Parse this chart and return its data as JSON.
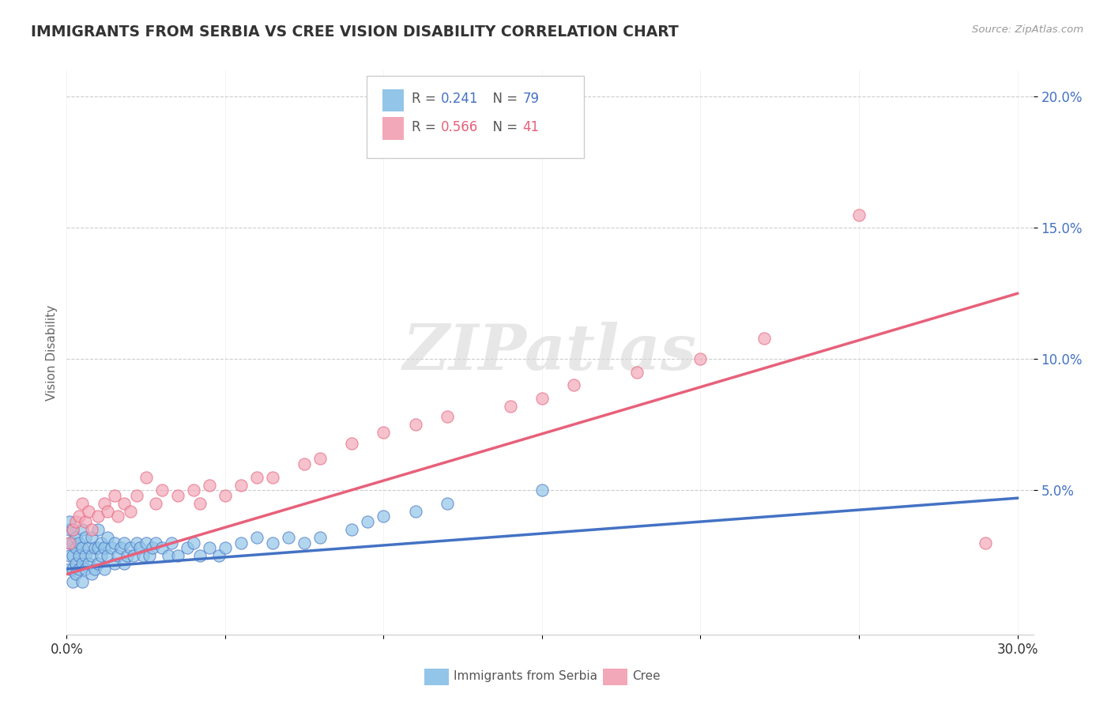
{
  "title": "IMMIGRANTS FROM SERBIA VS CREE VISION DISABILITY CORRELATION CHART",
  "source": "Source: ZipAtlas.com",
  "ylabel": "Vision Disability",
  "xlim": [
    0.0,
    0.305
  ],
  "ylim": [
    -0.005,
    0.21
  ],
  "xticks": [
    0.0,
    0.05,
    0.1,
    0.15,
    0.2,
    0.25,
    0.3
  ],
  "xticklabels": [
    "0.0%",
    "",
    "",
    "",
    "",
    "",
    "30.0%"
  ],
  "ytick_positions": [
    0.05,
    0.1,
    0.15,
    0.2
  ],
  "yticklabels": [
    "5.0%",
    "10.0%",
    "15.0%",
    "20.0%"
  ],
  "watermark": "ZIPatlas",
  "legend_r1": "0.241",
  "legend_n1": "79",
  "legend_r2": "0.566",
  "legend_n2": "41",
  "color_blue": "#92c5e8",
  "color_pink": "#f2a8b8",
  "color_blue_line": "#4472c4",
  "color_pink_line": "#e8607a",
  "serbia_x": [
    0.001,
    0.001,
    0.001,
    0.001,
    0.001,
    0.002,
    0.002,
    0.002,
    0.002,
    0.002,
    0.003,
    0.003,
    0.003,
    0.003,
    0.004,
    0.004,
    0.004,
    0.005,
    0.005,
    0.005,
    0.005,
    0.006,
    0.006,
    0.006,
    0.007,
    0.007,
    0.008,
    0.008,
    0.008,
    0.009,
    0.009,
    0.01,
    0.01,
    0.01,
    0.011,
    0.011,
    0.012,
    0.012,
    0.013,
    0.013,
    0.014,
    0.015,
    0.015,
    0.016,
    0.017,
    0.018,
    0.018,
    0.019,
    0.02,
    0.021,
    0.022,
    0.023,
    0.024,
    0.025,
    0.026,
    0.027,
    0.028,
    0.03,
    0.032,
    0.033,
    0.035,
    0.038,
    0.04,
    0.042,
    0.045,
    0.048,
    0.05,
    0.055,
    0.06,
    0.065,
    0.07,
    0.075,
    0.08,
    0.09,
    0.095,
    0.1,
    0.11,
    0.12,
    0.15
  ],
  "serbia_y": [
    0.02,
    0.025,
    0.03,
    0.035,
    0.038,
    0.015,
    0.02,
    0.025,
    0.03,
    0.035,
    0.018,
    0.022,
    0.028,
    0.032,
    0.02,
    0.025,
    0.03,
    0.015,
    0.022,
    0.028,
    0.035,
    0.02,
    0.025,
    0.032,
    0.022,
    0.028,
    0.018,
    0.025,
    0.032,
    0.02,
    0.028,
    0.022,
    0.028,
    0.035,
    0.025,
    0.03,
    0.02,
    0.028,
    0.025,
    0.032,
    0.028,
    0.022,
    0.03,
    0.025,
    0.028,
    0.022,
    0.03,
    0.025,
    0.028,
    0.025,
    0.03,
    0.028,
    0.025,
    0.03,
    0.025,
    0.028,
    0.03,
    0.028,
    0.025,
    0.03,
    0.025,
    0.028,
    0.03,
    0.025,
    0.028,
    0.025,
    0.028,
    0.03,
    0.032,
    0.03,
    0.032,
    0.03,
    0.032,
    0.035,
    0.038,
    0.04,
    0.042,
    0.045,
    0.05
  ],
  "cree_x": [
    0.001,
    0.002,
    0.003,
    0.004,
    0.005,
    0.006,
    0.007,
    0.008,
    0.01,
    0.012,
    0.013,
    0.015,
    0.016,
    0.018,
    0.02,
    0.022,
    0.025,
    0.028,
    0.03,
    0.035,
    0.04,
    0.042,
    0.045,
    0.05,
    0.055,
    0.06,
    0.065,
    0.075,
    0.08,
    0.09,
    0.1,
    0.11,
    0.12,
    0.14,
    0.15,
    0.16,
    0.18,
    0.2,
    0.22,
    0.25,
    0.29
  ],
  "cree_y": [
    0.03,
    0.035,
    0.038,
    0.04,
    0.045,
    0.038,
    0.042,
    0.035,
    0.04,
    0.045,
    0.042,
    0.048,
    0.04,
    0.045,
    0.042,
    0.048,
    0.055,
    0.045,
    0.05,
    0.048,
    0.05,
    0.045,
    0.052,
    0.048,
    0.052,
    0.055,
    0.055,
    0.06,
    0.062,
    0.068,
    0.072,
    0.075,
    0.078,
    0.082,
    0.085,
    0.09,
    0.095,
    0.1,
    0.108,
    0.155,
    0.03
  ],
  "serbia_trend_x": [
    0.0,
    0.3
  ],
  "serbia_trend_y": [
    0.02,
    0.047
  ],
  "cree_trend_x": [
    0.0,
    0.3
  ],
  "cree_trend_y": [
    0.018,
    0.125
  ]
}
